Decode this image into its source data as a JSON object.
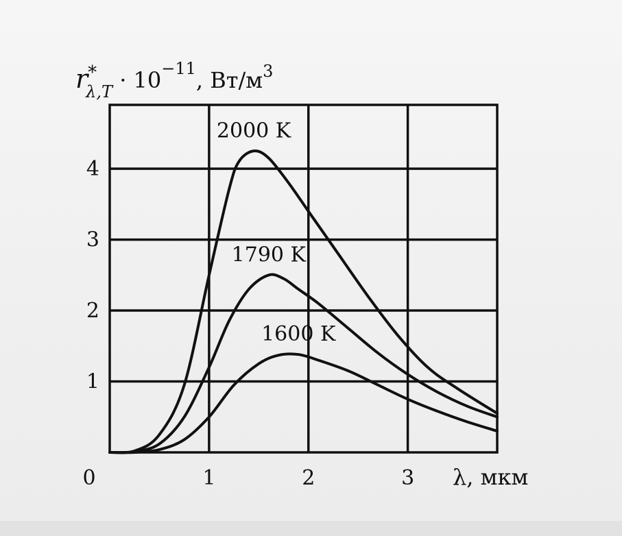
{
  "chart_data": {
    "type": "line",
    "title": "",
    "ylabel": {
      "symbol": "r",
      "sup": "*",
      "sub": "λ,T",
      "factor": " · 10",
      "exponent": "−11",
      "unit": ",  Вт/м",
      "unit_exponent": "3"
    },
    "xlabel": "λ,  мкм",
    "xlim": [
      0,
      3.9
    ],
    "ylim": [
      0,
      4.9
    ],
    "x_ticks": [
      "0",
      "1",
      "2",
      "3"
    ],
    "x_tick_values": [
      0,
      1,
      2,
      3
    ],
    "y_ticks": [
      "1",
      "2",
      "3",
      "4"
    ],
    "y_tick_values": [
      1,
      2,
      3,
      4
    ],
    "grid": true,
    "series": [
      {
        "name": "2000  K",
        "x": [
          0.0,
          0.25,
          0.5,
          0.75,
          1.0,
          1.2,
          1.3,
          1.45,
          1.6,
          1.8,
          2.0,
          2.3,
          2.6,
          2.9,
          3.2,
          3.5,
          3.9
        ],
        "y": [
          0.0,
          0.02,
          0.25,
          0.95,
          2.5,
          3.7,
          4.1,
          4.25,
          4.15,
          3.8,
          3.4,
          2.8,
          2.2,
          1.65,
          1.2,
          0.9,
          0.55
        ]
      },
      {
        "name": "1790  K",
        "x": [
          0.0,
          0.25,
          0.5,
          0.75,
          1.0,
          1.2,
          1.4,
          1.6,
          1.75,
          1.9,
          2.1,
          2.4,
          2.7,
          3.0,
          3.3,
          3.6,
          3.9
        ],
        "y": [
          0.0,
          0.01,
          0.12,
          0.5,
          1.2,
          1.85,
          2.3,
          2.5,
          2.45,
          2.3,
          2.1,
          1.75,
          1.4,
          1.1,
          0.85,
          0.65,
          0.5
        ]
      },
      {
        "name": "1600  K",
        "x": [
          0.0,
          0.25,
          0.5,
          0.75,
          1.0,
          1.25,
          1.5,
          1.7,
          1.9,
          2.1,
          2.4,
          2.7,
          3.0,
          3.3,
          3.6,
          3.9
        ],
        "y": [
          0.0,
          0.0,
          0.04,
          0.18,
          0.5,
          0.95,
          1.25,
          1.37,
          1.38,
          1.3,
          1.15,
          0.95,
          0.75,
          0.58,
          0.43,
          0.3
        ]
      }
    ]
  }
}
